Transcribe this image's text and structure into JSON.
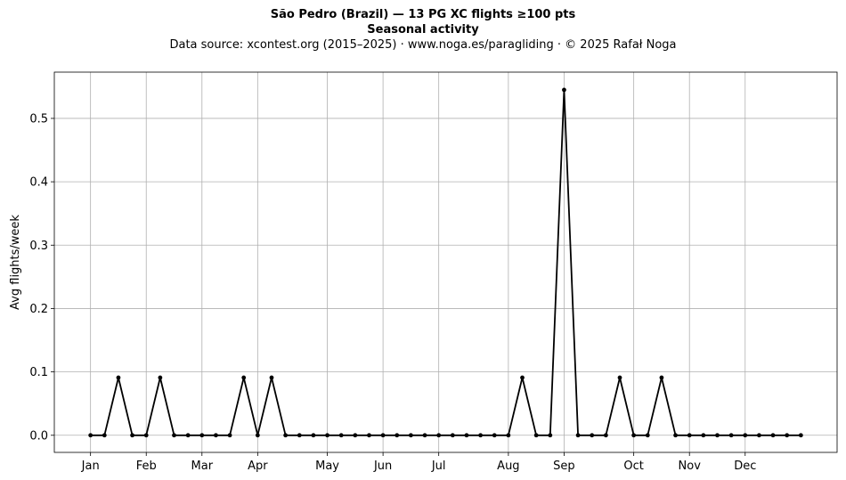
{
  "chart_data": {
    "type": "line",
    "title": "São Pedro (Brazil)  —  13 PG XC flights ≥100 pts",
    "subtitle": "Seasonal activity",
    "source_note": "Data source: xcontest.org (2015–2025)  ·  www.noga.es/paragliding  ·  © 2025 Rafał Noga",
    "xlabel": "",
    "ylabel": "Avg flights/week",
    "grid": true,
    "xlim": [
      -2.6,
      53.6
    ],
    "ylim": [
      -0.027,
      0.573
    ],
    "yticks": [
      0.0,
      0.1,
      0.2,
      0.3,
      0.4,
      0.5
    ],
    "ytick_labels": [
      "0.0",
      "0.1",
      "0.2",
      "0.3",
      "0.4",
      "0.5"
    ],
    "xticks": [
      0,
      4,
      8,
      12,
      17,
      21,
      25,
      30,
      34,
      39,
      43,
      47
    ],
    "xtick_labels": [
      "Jan",
      "Feb",
      "Mar",
      "Apr",
      "May",
      "Jun",
      "Jul",
      "Aug",
      "Sep",
      "Oct",
      "Nov",
      "Dec"
    ],
    "series": [
      {
        "color": "#000000",
        "marker": "dot",
        "x": [
          0,
          1,
          2,
          3,
          4,
          5,
          6,
          7,
          8,
          9,
          10,
          11,
          12,
          13,
          14,
          15,
          16,
          17,
          18,
          19,
          20,
          21,
          22,
          23,
          24,
          25,
          26,
          27,
          28,
          29,
          30,
          31,
          32,
          33,
          34,
          35,
          36,
          37,
          38,
          39,
          40,
          41,
          42,
          43,
          44,
          45,
          46,
          47,
          48,
          49,
          50,
          51
        ],
        "values": [
          0,
          0,
          0.091,
          0,
          0,
          0.091,
          0,
          0,
          0,
          0,
          0,
          0.091,
          0,
          0.091,
          0,
          0,
          0,
          0,
          0,
          0,
          0,
          0,
          0,
          0,
          0,
          0,
          0,
          0,
          0,
          0,
          0,
          0.091,
          0,
          0,
          0.545,
          0,
          0,
          0,
          0.091,
          0,
          0,
          0.091,
          0,
          0,
          0,
          0,
          0,
          0,
          0,
          0,
          0,
          0
        ]
      }
    ]
  }
}
